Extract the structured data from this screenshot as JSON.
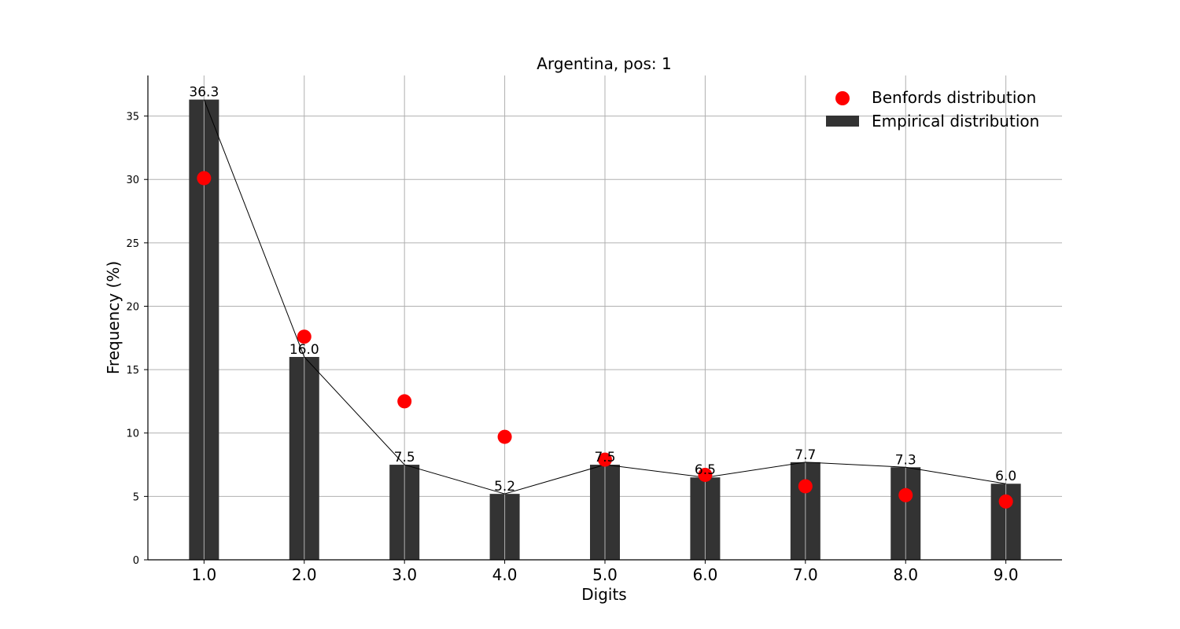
{
  "chart_data": {
    "type": "bar",
    "title": "Argentina, pos: 1",
    "xlabel": "Digits",
    "ylabel": "Frequency (%)",
    "categories": [
      "1.0",
      "2.0",
      "3.0",
      "4.0",
      "5.0",
      "6.0",
      "7.0",
      "8.0",
      "9.0"
    ],
    "x": [
      1,
      2,
      3,
      4,
      5,
      6,
      7,
      8,
      9
    ],
    "ylim": [
      0,
      38.2
    ],
    "yticks": [
      0,
      5,
      10,
      15,
      20,
      25,
      30,
      35
    ],
    "grid": true,
    "legend_position": "top-right",
    "series": [
      {
        "name": "Empirical distribution",
        "kind": "bar",
        "color": "#333333",
        "values": [
          36.3,
          16.0,
          7.5,
          5.2,
          7.5,
          6.5,
          7.7,
          7.3,
          6.0
        ],
        "labels": [
          "36.3",
          "16.0",
          "7.5",
          "5.2",
          "7.5",
          "6.5",
          "7.7",
          "7.3",
          "6.0"
        ]
      },
      {
        "name": "Benfords distribution",
        "kind": "scatter",
        "color": "#ff0000",
        "values": [
          30.1,
          17.6,
          12.5,
          9.7,
          7.9,
          6.7,
          5.8,
          5.1,
          4.6
        ]
      }
    ]
  }
}
